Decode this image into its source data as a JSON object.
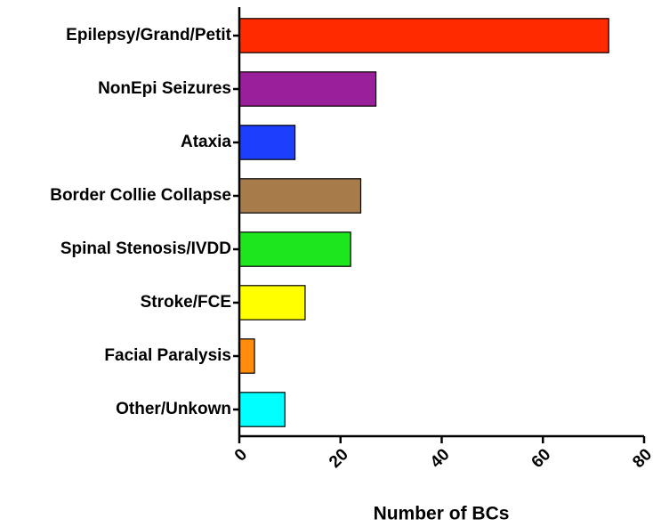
{
  "chart_data": {
    "type": "bar",
    "orientation": "horizontal",
    "categories": [
      "Epilepsy/Grand/Petit",
      "NonEpi Seizures",
      "Ataxia",
      "Border Collie Collapse",
      "Spinal Stenosis/IVDD",
      "Stroke/FCE",
      "Facial Paralysis",
      "Other/Unkown"
    ],
    "values": [
      73,
      27,
      11,
      24,
      22,
      13,
      3,
      9
    ],
    "colors": [
      "#ff2a00",
      "#99209a",
      "#1c3ffd",
      "#a87c4a",
      "#1ee61e",
      "#ffff00",
      "#ff8c0a",
      "#00ffff"
    ],
    "xlabel": "Number of BCs",
    "xlim": [
      0,
      80
    ],
    "xticks": [
      0,
      20,
      40,
      60,
      80
    ],
    "grid": false
  }
}
